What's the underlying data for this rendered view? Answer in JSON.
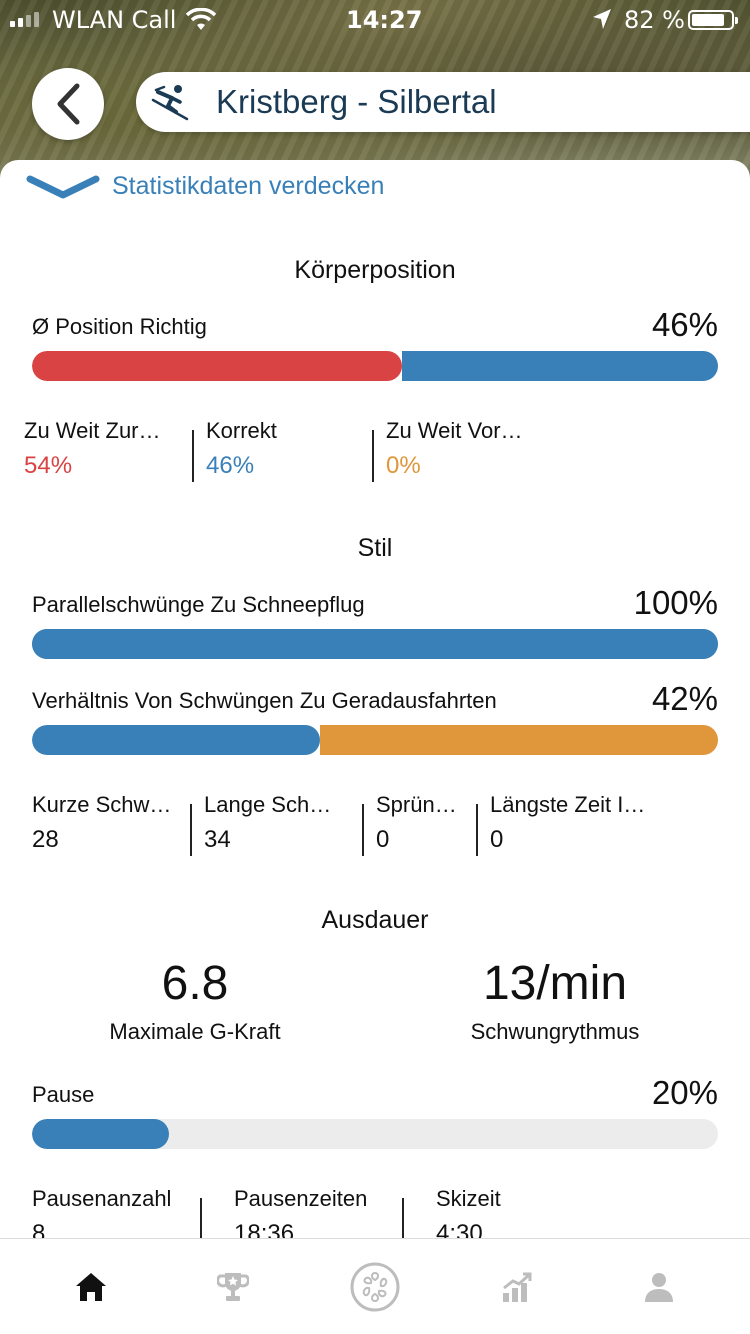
{
  "status_bar": {
    "carrier": "WLAN Call",
    "time": "14:27",
    "battery": "82 %"
  },
  "header": {
    "title": "Kristberg - Silbertal"
  },
  "toggle": {
    "label": "Statistikdaten verdecken"
  },
  "koerperposition": {
    "title": "Körperposition",
    "row_label": "Ø Position Richtig",
    "row_value": "46%",
    "bar": {
      "red_fraction": 0.54,
      "blue_fraction": 0.46
    },
    "stats": [
      {
        "label": "Zu Weit Zur…",
        "value": "54%",
        "color": "#d94343"
      },
      {
        "label": "Korrekt",
        "value": "46%",
        "color": "#3a80b8"
      },
      {
        "label": "Zu Weit Vor…",
        "value": "0%",
        "color": "#e0963a"
      }
    ]
  },
  "stil": {
    "title": "Stil",
    "rows": [
      {
        "label": "Parallelschwünge Zu Schneepflug",
        "value": "100%",
        "fraction": 1.0
      },
      {
        "label": "Verhältnis Von Schwüngen Zu Geradausfahrten",
        "value": "42%",
        "fraction": 0.42
      }
    ],
    "stats": [
      {
        "label": "Kurze Schw…",
        "value": "28"
      },
      {
        "label": "Lange Sch…",
        "value": "34"
      },
      {
        "label": "Sprün…",
        "value": "0"
      },
      {
        "label": "Längste Zeit I…",
        "value": "0"
      }
    ]
  },
  "ausdauer": {
    "title": "Ausdauer",
    "g_force": {
      "value": "6.8",
      "label": "Maximale G-Kraft"
    },
    "rhythm": {
      "value": "13/min",
      "label": "Schwungrythmus"
    },
    "pause": {
      "label": "Pause",
      "value": "20%",
      "fraction": 0.2
    },
    "stats": [
      {
        "label": "Pausenanzahl",
        "value": "8"
      },
      {
        "label": "Pausenzeiten",
        "value": "18:36"
      },
      {
        "label": "Skizeit",
        "value": "4:30"
      }
    ]
  },
  "colors": {
    "blue": "#3a80b8",
    "red": "#d94343",
    "orange": "#e0963a",
    "track": "#ececec"
  },
  "tabs": [
    "home-icon",
    "trophy-icon",
    "badge-icon",
    "stats-icon",
    "profile-icon"
  ]
}
